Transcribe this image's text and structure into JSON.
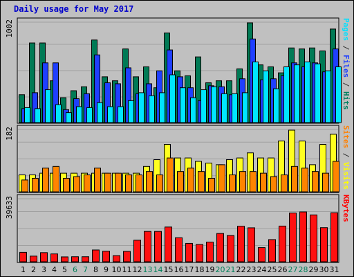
{
  "chart_data": {
    "type": "bar",
    "title": "Daily usage for May 2017",
    "x": [
      "1",
      "2",
      "3",
      "4",
      "5",
      "6",
      "7",
      "8",
      "9",
      "10",
      "11",
      "12",
      "13",
      "14",
      "15",
      "16",
      "17",
      "18",
      "19",
      "20",
      "21",
      "22",
      "23",
      "24",
      "25",
      "26",
      "27",
      "28",
      "29",
      "30",
      "31"
    ],
    "weekend_days": [
      "6",
      "7",
      "13",
      "14",
      "20",
      "21",
      "27",
      "28"
    ],
    "panels": [
      {
        "name": "pages-files-hits",
        "ymax_label": "1002",
        "ymax": 1002,
        "label_parts": [
          "Pages",
          " / ",
          "Files",
          " / ",
          "Hits"
        ],
        "label_colors": [
          "#00e0ff",
          "#333333",
          "#2040ff",
          "#333333",
          "#008060"
        ],
        "series": [
          {
            "name": "Hits",
            "color": "#007a55",
            "values": [
              280,
              800,
              800,
              420,
              250,
              320,
              360,
              830,
              460,
              420,
              740,
              460,
              560,
              350,
              900,
              520,
              470,
              660,
              400,
              420,
              420,
              540,
              1002,
              580,
              560,
              500,
              750,
              740,
              750,
              720,
              940
            ]
          },
          {
            "name": "Files",
            "color": "#1f3fff",
            "values": [
              140,
              300,
              600,
              600,
              130,
              240,
              290,
              680,
              400,
              390,
              550,
              290,
              390,
              520,
              730,
              460,
              350,
              220,
              370,
              360,
              280,
              440,
              840,
              430,
              440,
              470,
              600,
              560,
              600,
              510,
              740
            ]
          },
          {
            "name": "Pages",
            "color": "#00e5ff",
            "values": [
              150,
              140,
              330,
              180,
              100,
              160,
              150,
              200,
              160,
              160,
              220,
              300,
              270,
              300,
              480,
              350,
              250,
              330,
              360,
              290,
              290,
              300,
              610,
              520,
              340,
              560,
              580,
              610,
              590,
              520,
              560
            ]
          }
        ]
      },
      {
        "name": "visits-sites",
        "ymax_label": "182",
        "ymax": 182,
        "label_parts": [
          "Sites",
          " / ",
          "Visits"
        ],
        "label_colors": [
          "#ff8000",
          "#333333",
          "#ffff00"
        ],
        "series": [
          {
            "name": "Visits",
            "color": "#ffff20",
            "values": [
              50,
              50,
              55,
              55,
              55,
              55,
              55,
              55,
              55,
              55,
              55,
              55,
              75,
              95,
              140,
              100,
              100,
              90,
              85,
              80,
              95,
              100,
              115,
              100,
              100,
              150,
              182,
              150,
              80,
              140,
              170
            ]
          },
          {
            "name": "Sites",
            "color": "#ff8400",
            "values": [
              35,
              40,
              70,
              75,
              40,
              45,
              50,
              70,
              55,
              55,
              50,
              50,
              60,
              50,
              100,
              60,
              70,
              60,
              40,
              80,
              50,
              60,
              60,
              55,
              45,
              50,
              75,
              70,
              60,
              55,
              90
            ]
          }
        ]
      },
      {
        "name": "kbytes",
        "ymax_label": "39633",
        "ymax": 39633,
        "label_parts": [
          "KBytes"
        ],
        "label_colors": [
          "#ff0000"
        ],
        "series": [
          {
            "name": "KBytes",
            "color": "#ff1010",
            "values": [
              6000,
              3600,
              5800,
              5000,
              3100,
              3200,
              3200,
              7500,
              6700,
              3900,
              6600,
              13700,
              19300,
              19300,
              22100,
              15300,
              11700,
              11000,
              12500,
              18000,
              16700,
              22600,
              21600,
              9000,
              14100,
              22700,
              31000,
              31700,
              29800,
              21700,
              31200
            ]
          }
        ]
      }
    ]
  }
}
